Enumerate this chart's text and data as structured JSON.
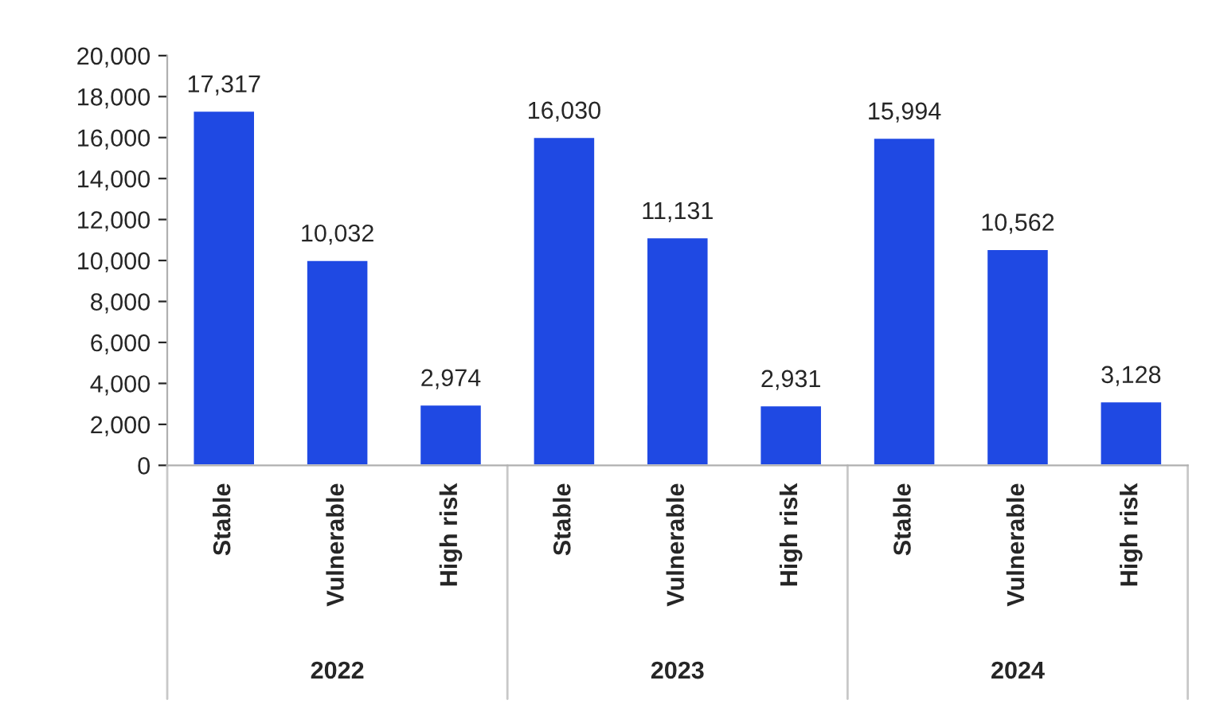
{
  "chart_data": {
    "type": "bar",
    "categories": [
      "Stable",
      "Vulnerable",
      "High risk",
      "Stable",
      "Vulnerable",
      "High risk",
      "Stable",
      "Vulnerable",
      "High risk"
    ],
    "values": [
      17317,
      10032,
      2974,
      16030,
      11131,
      2931,
      15994,
      10562,
      3128
    ],
    "color": "#1f49e3",
    "ylim": [
      0,
      20000
    ],
    "yticks": [
      {
        "value": 0,
        "label": "0"
      },
      {
        "value": 2000,
        "label": "2,000"
      },
      {
        "value": 4000,
        "label": "4,000"
      },
      {
        "value": 6000,
        "label": "6,000"
      },
      {
        "value": 8000,
        "label": "8,000"
      },
      {
        "value": 10000,
        "label": "10,000"
      },
      {
        "value": 12000,
        "label": "12,000"
      },
      {
        "value": 14000,
        "label": "14,000"
      },
      {
        "value": 16000,
        "label": "16,000"
      },
      {
        "value": 18000,
        "label": "18,000"
      },
      {
        "value": 20000,
        "label": "20,000"
      }
    ],
    "value_labels": [
      "17,317",
      "10,032",
      "2,974",
      "16,030",
      "11,131",
      "2,931",
      "15,994",
      "10,562",
      "3,128"
    ],
    "annotations": [
      "2022",
      "2023",
      "2024"
    ],
    "grid": false,
    "legend": false
  }
}
